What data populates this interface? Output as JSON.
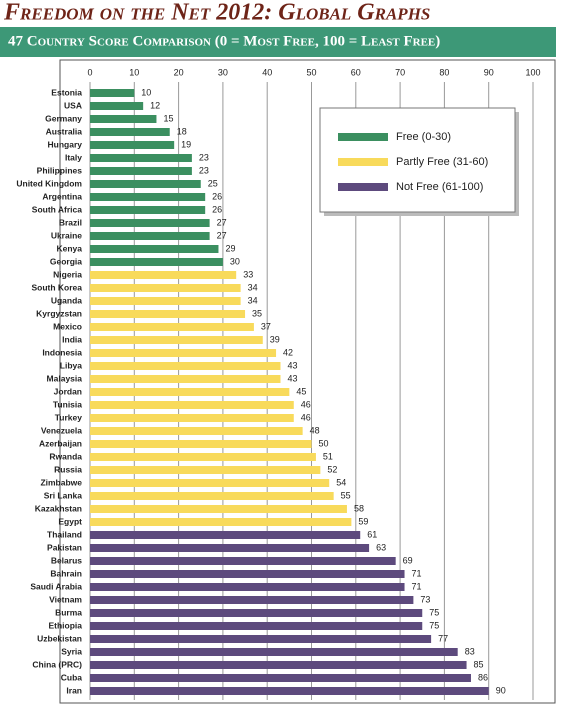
{
  "chart_data": {
    "type": "bar",
    "orientation": "horizontal",
    "title": "Freedom on the Net 2012: Global Graphs",
    "subtitle": "47 Country Score Comparison (0 = Most Free, 100 = Least Free)",
    "categories": [
      "Estonia",
      "USA",
      "Germany",
      "Australia",
      "Hungary",
      "Italy",
      "Philippines",
      "United Kingdom",
      "Argentina",
      "South Africa",
      "Brazil",
      "Ukraine",
      "Kenya",
      "Georgia",
      "Nigeria",
      "South Korea",
      "Uganda",
      "Kyrgyzstan",
      "Mexico",
      "India",
      "Indonesia",
      "Libya",
      "Malaysia",
      "Jordan",
      "Tunisia",
      "Turkey",
      "Venezuela",
      "Azerbaijan",
      "Rwanda",
      "Russia",
      "Zimbabwe",
      "Sri Lanka",
      "Kazakhstan",
      "Egypt",
      "Thailand",
      "Pakistan",
      "Belarus",
      "Bahrain",
      "Saudi Arabia",
      "Vietnam",
      "Burma",
      "Ethiopia",
      "Uzbekistan",
      "Syria",
      "China (PRC)",
      "Cuba",
      "Iran"
    ],
    "series": [
      {
        "name": "Free (0-30)",
        "color": "#3b8f60",
        "values": [
          10,
          12,
          15,
          18,
          19,
          23,
          23,
          25,
          26,
          26,
          27,
          27,
          29,
          30,
          null,
          null,
          null,
          null,
          null,
          null,
          null,
          null,
          null,
          null,
          null,
          null,
          null,
          null,
          null,
          null,
          null,
          null,
          null,
          null,
          null,
          null,
          null,
          null,
          null,
          null,
          null,
          null,
          null,
          null,
          null,
          null,
          null
        ]
      },
      {
        "name": "Partly Free (31-60)",
        "color": "#f8da5b",
        "values": [
          null,
          null,
          null,
          null,
          null,
          null,
          null,
          null,
          null,
          null,
          null,
          null,
          null,
          null,
          33,
          34,
          34,
          35,
          37,
          39,
          42,
          43,
          43,
          45,
          46,
          46,
          48,
          50,
          51,
          52,
          54,
          55,
          58,
          59,
          null,
          null,
          null,
          null,
          null,
          null,
          null,
          null,
          null,
          null,
          null,
          null,
          null
        ]
      },
      {
        "name": "Not Free (61-100)",
        "color": "#5d4a7d",
        "values": [
          null,
          null,
          null,
          null,
          null,
          null,
          null,
          null,
          null,
          null,
          null,
          null,
          null,
          null,
          null,
          null,
          null,
          null,
          null,
          null,
          null,
          null,
          null,
          null,
          null,
          null,
          null,
          null,
          null,
          null,
          null,
          null,
          null,
          null,
          61,
          63,
          69,
          71,
          71,
          73,
          75,
          75,
          77,
          83,
          85,
          86,
          90
        ]
      }
    ],
    "xlim": [
      0,
      100
    ],
    "xticks": [
      0,
      10,
      20,
      30,
      40,
      50,
      60,
      70,
      80,
      90,
      100
    ],
    "grid": true,
    "legend": "top-right"
  }
}
